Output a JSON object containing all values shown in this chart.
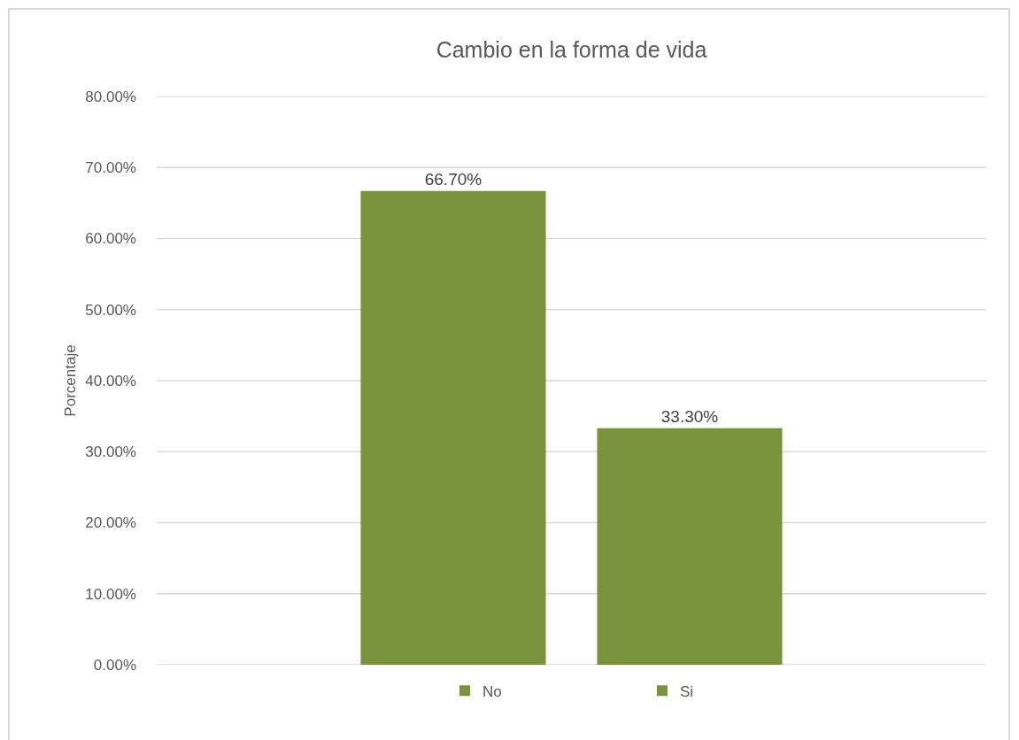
{
  "chart_data": {
    "type": "bar",
    "title": "Cambio en la forma de vida",
    "ylabel": "Porcentaje",
    "categories": [
      null
    ],
    "series": [
      {
        "name": "No",
        "color": "#77933c",
        "values": [
          66.7
        ],
        "value_labels": [
          "66.70%"
        ]
      },
      {
        "name": "Si",
        "color": "#77933c",
        "values": [
          33.3
        ],
        "value_labels": [
          "33.30%"
        ]
      }
    ],
    "ylim": [
      0,
      80
    ],
    "yticks": [
      {
        "value": 0,
        "label": "0.00%"
      },
      {
        "value": 10,
        "label": "10.00%"
      },
      {
        "value": 20,
        "label": "20.00%"
      },
      {
        "value": 30,
        "label": "30.00%"
      },
      {
        "value": 40,
        "label": "40.00%"
      },
      {
        "value": 50,
        "label": "50.00%"
      },
      {
        "value": 60,
        "label": "60.00%"
      },
      {
        "value": 70,
        "label": "70.00%"
      },
      {
        "value": 80,
        "label": "80.00%"
      }
    ],
    "grid": "y",
    "legend": "bottom",
    "tick_labels": "y"
  }
}
